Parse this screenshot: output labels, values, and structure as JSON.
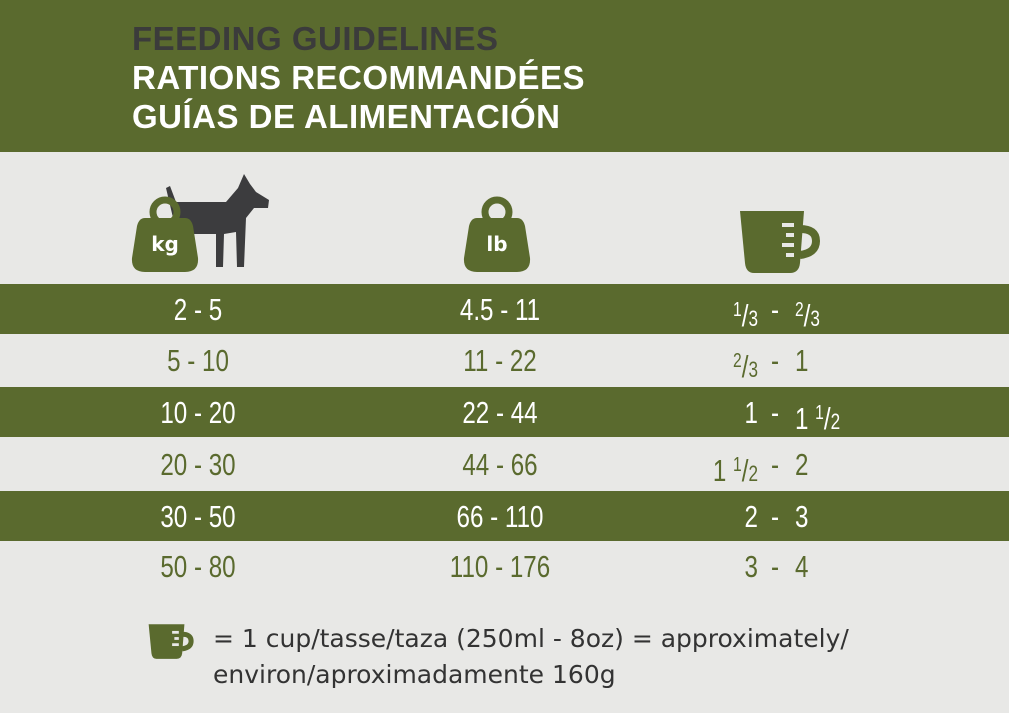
{
  "header": {
    "title_en": "FEEDING GUIDELINES",
    "title_fr": "RATIONS RECOMMANDÉES",
    "title_es": "GUÍAS DE ALIMENTACIÓN"
  },
  "columns": {
    "kg_label": "kg",
    "lb_label": "lb",
    "kg_icon": "weight-kg-icon",
    "dog_icon": "dog-icon",
    "lb_icon": "weight-lb-icon",
    "cup_icon": "measuring-cup-icon"
  },
  "rows": [
    {
      "kg": "2 - 5",
      "lb": "4.5 - 11",
      "cup_from": "1/3",
      "cup_to": "2/3",
      "shade": "dark"
    },
    {
      "kg": "5 - 10",
      "lb": "11 - 22",
      "cup_from": "2/3",
      "cup_to": "1",
      "shade": "light"
    },
    {
      "kg": "10 - 20",
      "lb": "22 - 44",
      "cup_from": "1",
      "cup_to": "1 1/2",
      "shade": "dark"
    },
    {
      "kg": "20 - 30",
      "lb": "44 - 66",
      "cup_from": "1 1/2",
      "cup_to": "2",
      "shade": "light"
    },
    {
      "kg": "30 - 50",
      "lb": "66 - 110",
      "cup_from": "2",
      "cup_to": "3",
      "shade": "dark"
    },
    {
      "kg": "50 - 80",
      "lb": "110 - 176",
      "cup_from": "3",
      "cup_to": "4",
      "shade": "light"
    }
  ],
  "dash": "-",
  "footer": {
    "text": "= 1 cup/tasse/taza (250ml - 8oz) = approximately/ environ/aproximadamente 160g"
  },
  "colors": {
    "olive": "#5a6a2e",
    "background": "#e8e8e6",
    "dog": "#3c3c3e",
    "title_dark": "#3b3b3b"
  }
}
